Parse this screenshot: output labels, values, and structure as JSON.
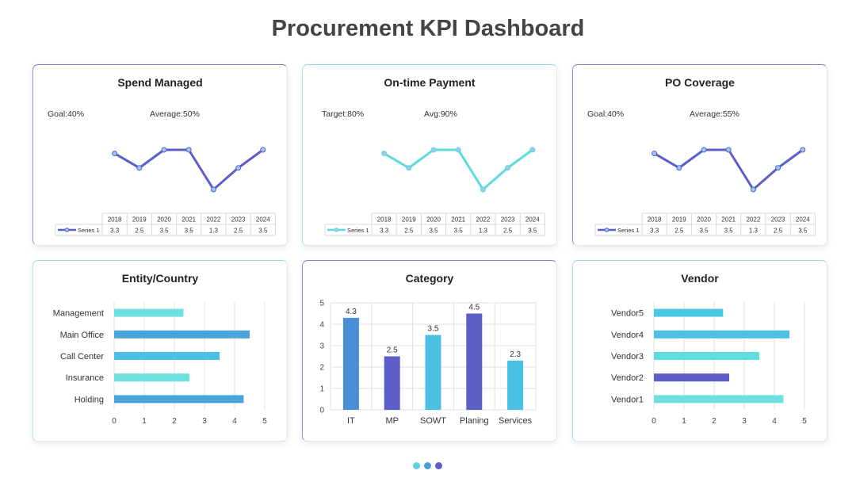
{
  "page": {
    "title": "Procurement KPI Dashboard",
    "pager_colors": [
      "#5fd3dc",
      "#4a9fd8",
      "#5b5fc7"
    ]
  },
  "cards": [
    {
      "title": "Spend Managed",
      "kpi_left": "Goal:40%",
      "kpi_right": "Average:50%",
      "color": "#5b5fc7"
    },
    {
      "title": "On-time Payment",
      "kpi_left": "Target:80%",
      "kpi_right": "Avg:90%",
      "color": "#5ddbdb"
    },
    {
      "title": "PO Coverage",
      "kpi_left": "Goal:40%",
      "kpi_right": "Average:55%",
      "color": "#5b5fc7"
    },
    {
      "title": "Entity/Country"
    },
    {
      "title": "Category"
    },
    {
      "title": "Vendor"
    }
  ],
  "chart_data": [
    {
      "type": "line",
      "title": "Spend Managed",
      "x": [
        "2018",
        "2019",
        "2020",
        "2021",
        "2022",
        "2023",
        "2024"
      ],
      "series": [
        {
          "name": "Series 1",
          "values": [
            3.3,
            2.5,
            3.5,
            3.5,
            1.3,
            2.5,
            3.5
          ],
          "color": "#5b5fc7"
        }
      ],
      "data_table": true,
      "legend": "data-table-left"
    },
    {
      "type": "line",
      "title": "On-time Payment",
      "x": [
        "2018",
        "2019",
        "2020",
        "2021",
        "2022",
        "2023",
        "2024"
      ],
      "series": [
        {
          "name": "Series 1",
          "values": [
            3.3,
            2.5,
            3.5,
            3.5,
            1.3,
            2.5,
            3.5
          ],
          "color": "#5ddbdb"
        }
      ],
      "data_table": true,
      "legend": "data-table-left"
    },
    {
      "type": "line",
      "title": "PO Coverage",
      "x": [
        "2018",
        "2019",
        "2020",
        "2021",
        "2022",
        "2023",
        "2024"
      ],
      "series": [
        {
          "name": "Series 1",
          "values": [
            3.3,
            2.5,
            3.5,
            3.5,
            1.3,
            2.5,
            3.5
          ],
          "color": "#5b5fc7"
        }
      ],
      "data_table": true,
      "legend": "data-table-left"
    },
    {
      "type": "bar",
      "orientation": "horizontal",
      "title": "Entity/Country",
      "categories": [
        "Management",
        "Main Office",
        "Call Center",
        "Insurance",
        "Holding"
      ],
      "values": [
        2.3,
        4.5,
        3.5,
        2.5,
        4.3
      ],
      "colors": [
        "#6ee0e0",
        "#4aa3d9",
        "#4cc0e3",
        "#6ee0e0",
        "#4aa3d9"
      ],
      "xlim": [
        0,
        5
      ],
      "xticks": [
        0,
        1,
        2,
        3,
        4,
        5
      ],
      "grid": true
    },
    {
      "type": "bar",
      "orientation": "vertical",
      "title": "Category",
      "categories": [
        "IT",
        "MP",
        "SOWT",
        "Planing",
        "Services"
      ],
      "values": [
        4.3,
        2.5,
        3.5,
        4.5,
        2.3
      ],
      "data_labels": [
        "4.3",
        "2.5",
        "3.5",
        "4.5",
        "2.3"
      ],
      "colors": [
        "#4b8ed8",
        "#5b5fc7",
        "#4cc0e3",
        "#5b5fc7",
        "#4cc0e3"
      ],
      "ylim": [
        0,
        5
      ],
      "yticks": [
        0,
        1,
        2,
        3,
        4,
        5
      ],
      "grid": true
    },
    {
      "type": "bar",
      "orientation": "horizontal",
      "title": "Vendor",
      "categories": [
        "Vendor5",
        "Vendor4",
        "Vendor3",
        "Vendor2",
        "Vendor1"
      ],
      "values": [
        2.3,
        4.5,
        3.5,
        2.5,
        4.3
      ],
      "colors": [
        "#4cc8e3",
        "#4cc0e3",
        "#5fdcdc",
        "#5b5fc7",
        "#6ee0e0"
      ],
      "xlim": [
        0,
        5
      ],
      "xticks": [
        0,
        1,
        2,
        3,
        4,
        5
      ],
      "grid": true
    }
  ]
}
